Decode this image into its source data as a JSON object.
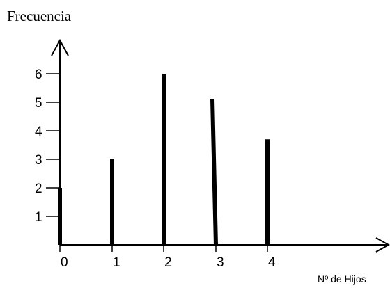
{
  "chart_data": {
    "type": "bar",
    "ylabel": "Frecuencia",
    "xlabel": "Nº de Hijos",
    "categories": [
      "0",
      "1",
      "2",
      "3",
      "4"
    ],
    "values": [
      2,
      3,
      6,
      5.1,
      3.7
    ],
    "yticks": [
      "1",
      "2",
      "3",
      "4",
      "5",
      "6"
    ],
    "ylim": [
      0,
      7
    ],
    "grid": false,
    "bar_color": "#000000"
  }
}
